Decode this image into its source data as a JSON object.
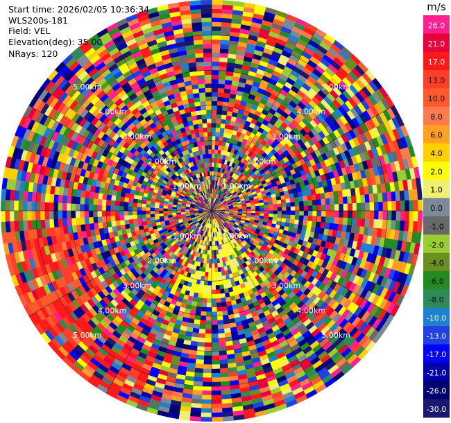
{
  "info": {
    "start_time": "Start time: 2026/02/05 10:36:34",
    "instrument": "WLS200s-181",
    "field": "Field: VEL",
    "elevation": "Elevation(deg): 35.00",
    "nrays": "NRays: 120"
  },
  "colorbar": {
    "unit": "m/s",
    "levels": [
      {
        "label": "26.0",
        "color": "#ff1f8f"
      },
      {
        "label": "21.0",
        "color": "#e8003a"
      },
      {
        "label": "17.0",
        "color": "#ff1a1a"
      },
      {
        "label": "13.0",
        "color": "#ff3f2a"
      },
      {
        "label": "10.0",
        "color": "#ff5a2c"
      },
      {
        "label": "8.0",
        "color": "#ff7a4e"
      },
      {
        "label": "6.0",
        "color": "#ffa020"
      },
      {
        "label": "4.0",
        "color": "#ffd000"
      },
      {
        "label": "2.0",
        "color": "#ffff00"
      },
      {
        "label": "1.0",
        "color": "#f0f070"
      },
      {
        "label": "0.0",
        "color": "#7b8a96"
      },
      {
        "label": "-1.0",
        "color": "#696969"
      },
      {
        "label": "-2.0",
        "color": "#9acd32"
      },
      {
        "label": "-4.0",
        "color": "#6b8e23"
      },
      {
        "label": "-6.0",
        "color": "#228b22"
      },
      {
        "label": "-8.0",
        "color": "#2e8b57"
      },
      {
        "label": "-10.0",
        "color": "#1e80d0"
      },
      {
        "label": "-13.0",
        "color": "#2040e0"
      },
      {
        "label": "-17.0",
        "color": "#0000ff"
      },
      {
        "label": "-21.0",
        "color": "#0000a8"
      },
      {
        "label": "-26.0",
        "color": "#000070"
      },
      {
        "label": "-30.0",
        "color": "#191970"
      }
    ]
  },
  "chart_data": {
    "type": "heatmap",
    "projection": "polar-ppi",
    "field": "VEL",
    "elevation_deg": 35.0,
    "nrays": 120,
    "range_ring_labels": [
      "1.00km",
      "2.00km",
      "3.00km",
      "4.00km",
      "5.00km"
    ],
    "label_azimuths_deg": [
      45,
      135,
      225,
      315
    ],
    "max_range_km": 6.0,
    "noise_dominated": true,
    "dominant_features": [
      {
        "region": "west-southwest outer ranges",
        "approx_value_ms": 17.0
      },
      {
        "region": "south-southeast inner ranges",
        "approx_value_ms": 2.0
      }
    ]
  }
}
